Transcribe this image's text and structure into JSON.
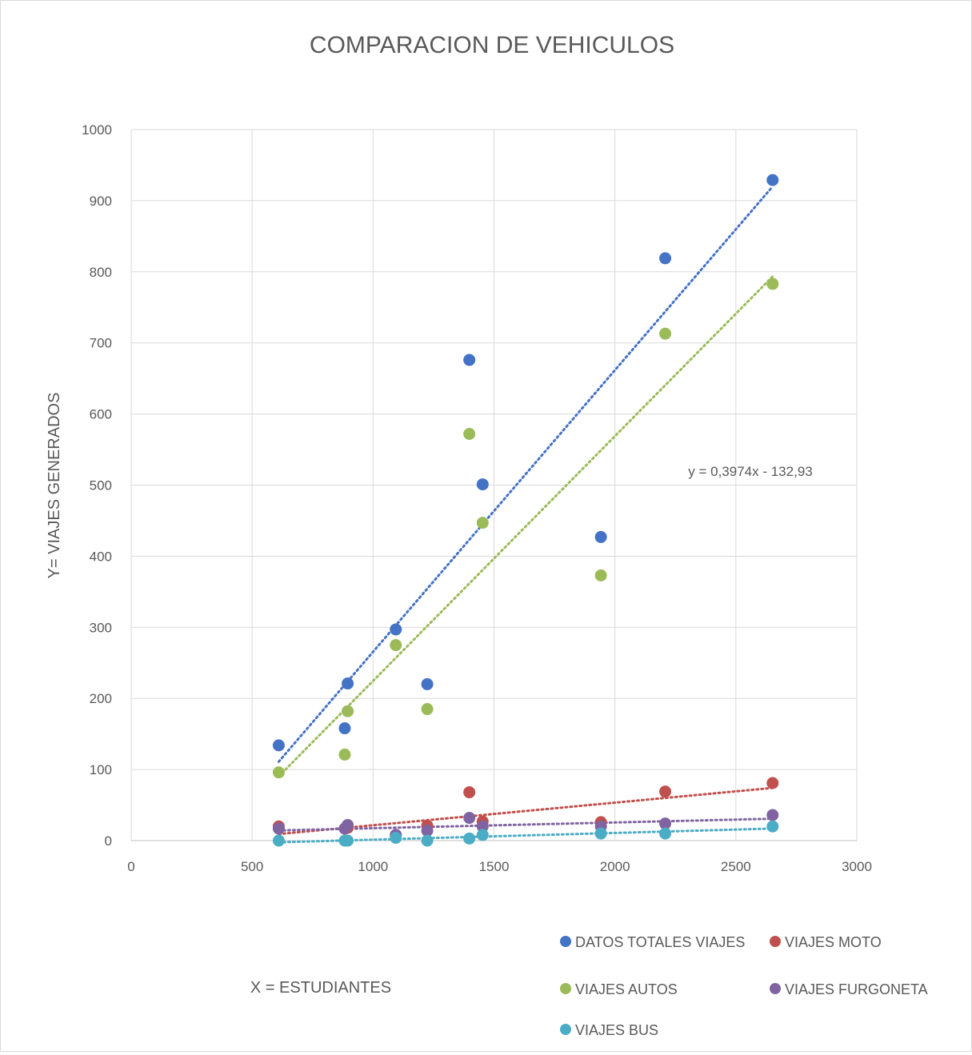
{
  "chart_data": {
    "type": "scatter",
    "title": "COMPARACION DE VEHICULOS",
    "xlabel": "X = ESTUDIANTES",
    "ylabel": "Y= VIAJES GENERADOS",
    "xlim": [
      0,
      3000
    ],
    "ylim": [
      0,
      1000
    ],
    "x_ticks": [
      "0",
      "500",
      "1000",
      "1500",
      "2000",
      "2500",
      "3000"
    ],
    "y_ticks": [
      "0",
      "100",
      "200",
      "300",
      "400",
      "500",
      "600",
      "700",
      "800",
      "900",
      "1000"
    ],
    "grid": true,
    "legend_position": "bottom",
    "trendline": "linear (dotted)",
    "annotation": "y = 0,3974x - 132,93",
    "series": [
      {
        "name": "DATOS TOTALES VIAJES",
        "color": "#4472c4",
        "points": [
          [
            610,
            134
          ],
          [
            883,
            158
          ],
          [
            895,
            221
          ],
          [
            1094,
            297
          ],
          [
            1224,
            220
          ],
          [
            1398,
            676
          ],
          [
            1453,
            501
          ],
          [
            1942,
            427
          ],
          [
            2208,
            819
          ],
          [
            2652,
            929
          ]
        ]
      },
      {
        "name": "VIAJES MOTO",
        "color": "#c0504d",
        "points": [
          [
            610,
            20
          ],
          [
            883,
            17
          ],
          [
            895,
            18
          ],
          [
            1094,
            8
          ],
          [
            1224,
            21
          ],
          [
            1398,
            68
          ],
          [
            1453,
            27
          ],
          [
            1942,
            26
          ],
          [
            2208,
            69
          ],
          [
            2652,
            81
          ]
        ]
      },
      {
        "name": "VIAJES AUTOS",
        "color": "#9bbb59",
        "points": [
          [
            610,
            96
          ],
          [
            883,
            121
          ],
          [
            895,
            182
          ],
          [
            1094,
            275
          ],
          [
            1224,
            185
          ],
          [
            1398,
            572
          ],
          [
            1453,
            447
          ],
          [
            1942,
            373
          ],
          [
            2208,
            713
          ],
          [
            2652,
            783
          ]
        ]
      },
      {
        "name": "VIAJES FURGONETA",
        "color": "#8064a2",
        "points": [
          [
            610,
            17
          ],
          [
            883,
            17
          ],
          [
            895,
            22
          ],
          [
            1094,
            8
          ],
          [
            1224,
            14
          ],
          [
            1398,
            32
          ],
          [
            1453,
            20
          ],
          [
            1942,
            20
          ],
          [
            2208,
            24
          ],
          [
            2652,
            36
          ]
        ]
      },
      {
        "name": "VIAJES BUS",
        "color": "#4bacc6",
        "points": [
          [
            610,
            0
          ],
          [
            883,
            0
          ],
          [
            895,
            0
          ],
          [
            1094,
            4
          ],
          [
            1224,
            0
          ],
          [
            1398,
            3
          ],
          [
            1453,
            8
          ],
          [
            1942,
            10
          ],
          [
            2208,
            10
          ],
          [
            2652,
            20
          ]
        ]
      }
    ]
  }
}
